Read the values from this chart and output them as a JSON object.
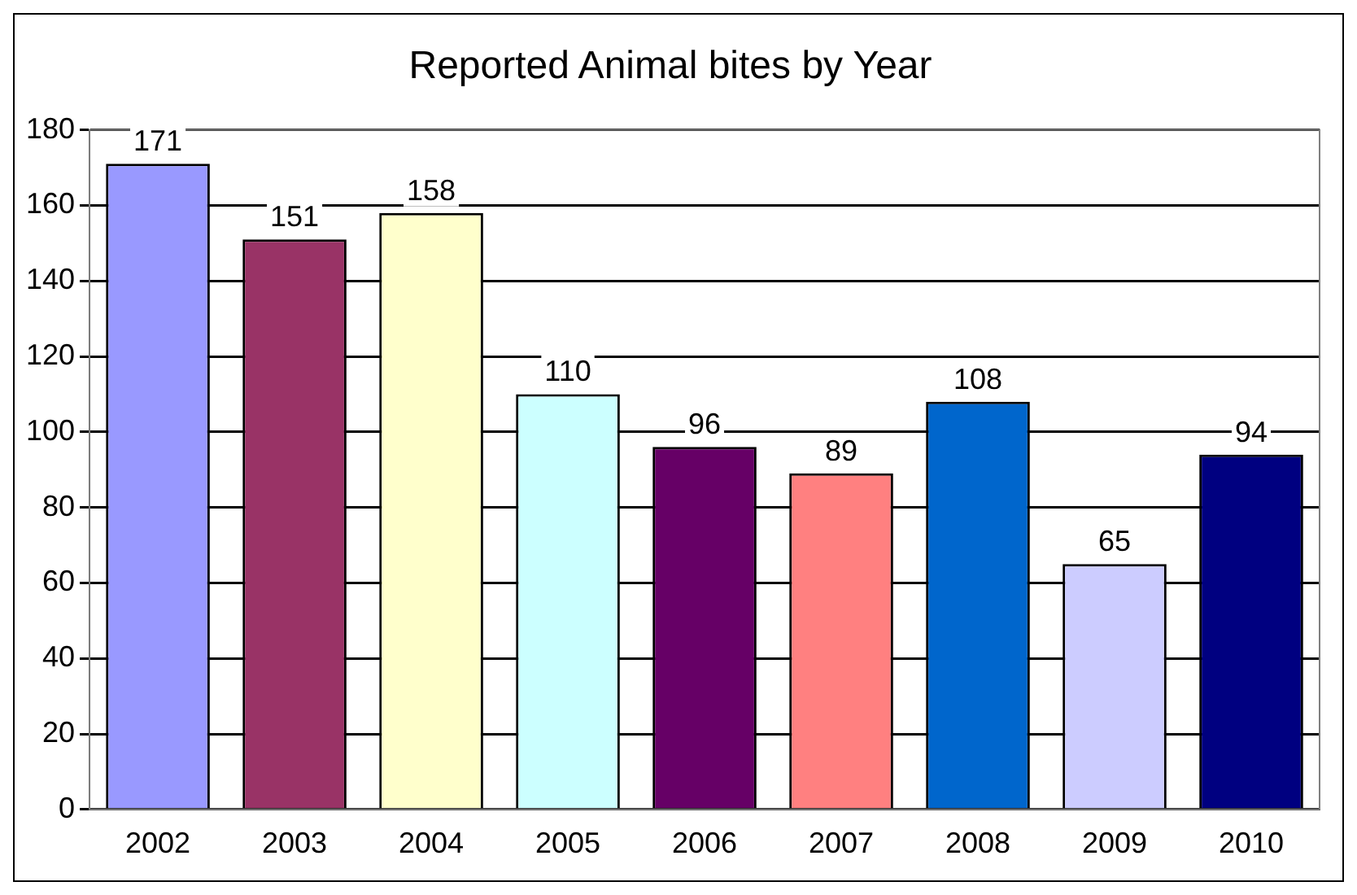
{
  "chart_data": {
    "type": "bar",
    "title": "Reported Animal bites by Year",
    "categories": [
      "2002",
      "2003",
      "2004",
      "2005",
      "2006",
      "2007",
      "2008",
      "2009",
      "2010"
    ],
    "values": [
      171,
      151,
      158,
      110,
      96,
      89,
      108,
      65,
      94
    ],
    "colors": [
      "#9999ff",
      "#993366",
      "#ffffcc",
      "#ccffff",
      "#660066",
      "#ff8080",
      "#0066cc",
      "#ccccff",
      "#000080"
    ],
    "ylim": [
      0,
      180
    ],
    "yticks": [
      0,
      20,
      40,
      60,
      80,
      100,
      120,
      140,
      160,
      180
    ],
    "grid": "y",
    "legend": false,
    "data_labels": true
  }
}
